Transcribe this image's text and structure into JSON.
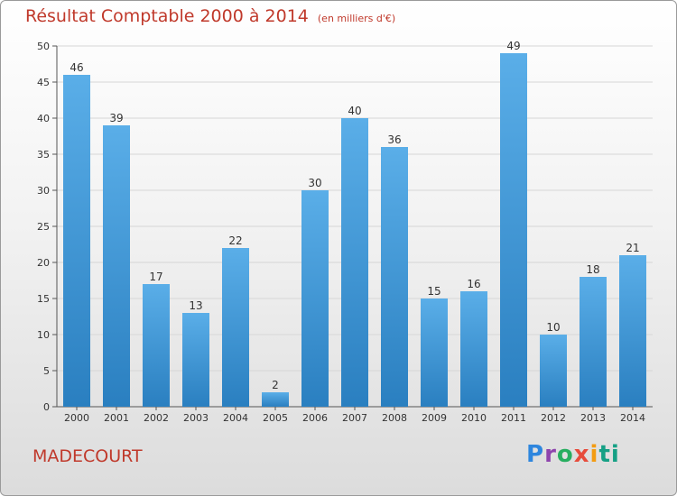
{
  "chart_data": {
    "type": "bar",
    "title": "Résultat Comptable 2000 à 2014",
    "unit_note": "(en milliers d'€)",
    "categories": [
      "2000",
      "2001",
      "2002",
      "2003",
      "2004",
      "2005",
      "2006",
      "2007",
      "2008",
      "2009",
      "2010",
      "2011",
      "2012",
      "2013",
      "2014"
    ],
    "values": [
      46,
      39,
      17,
      13,
      22,
      2,
      30,
      40,
      36,
      15,
      16,
      49,
      10,
      18,
      21
    ],
    "ylim": [
      0,
      50
    ],
    "yticks": [
      0,
      5,
      10,
      15,
      20,
      25,
      30,
      35,
      40,
      45,
      50
    ],
    "xlabel": "",
    "ylabel": "",
    "grid": true,
    "bar_color_top": "#5aaee8",
    "bar_color_bottom": "#2a7fc0"
  },
  "city": "MADECOURT",
  "logo": [
    "P",
    "r",
    "o",
    "x",
    "i",
    "ti"
  ]
}
